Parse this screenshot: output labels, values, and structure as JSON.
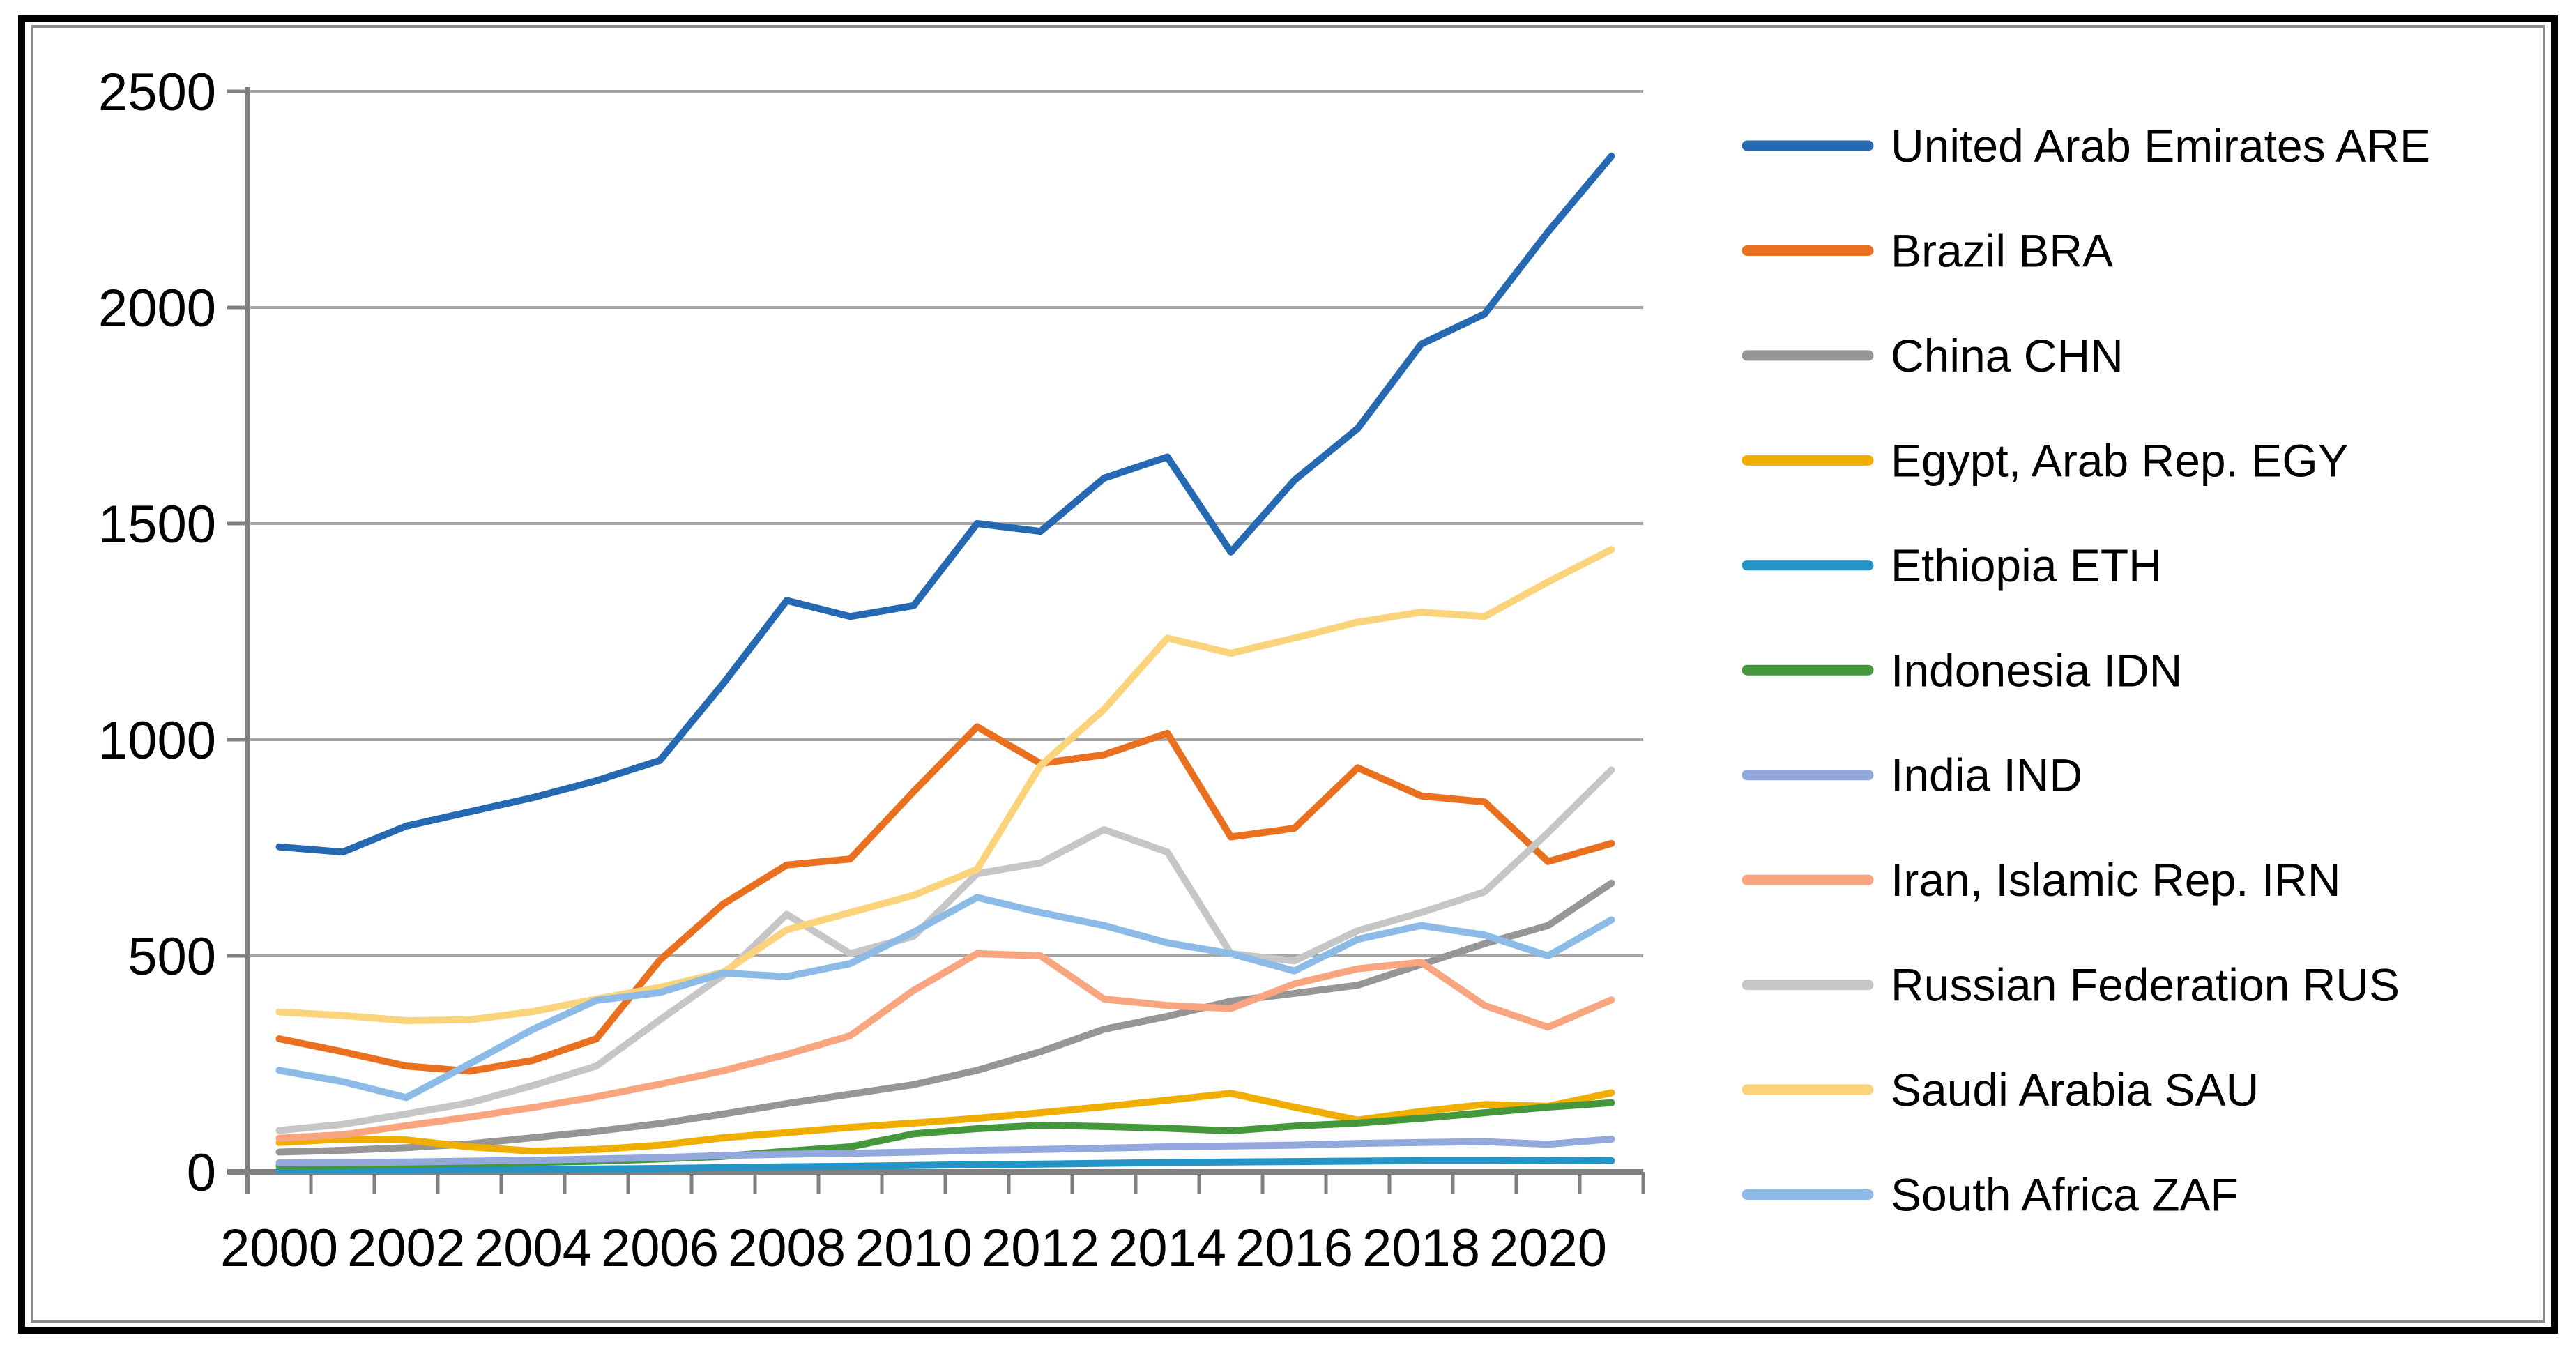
{
  "chart_data": {
    "type": "line",
    "x": [
      2000,
      2001,
      2002,
      2003,
      2004,
      2005,
      2006,
      2007,
      2008,
      2009,
      2010,
      2011,
      2012,
      2013,
      2014,
      2015,
      2016,
      2017,
      2018,
      2019,
      2020,
      2021
    ],
    "xtick_labels": [
      "2000",
      "2002",
      "2004",
      "2006",
      "2008",
      "2010",
      "2012",
      "2014",
      "2016",
      "2018",
      "2020"
    ],
    "ytick_labels": [
      "2500",
      "2000",
      "1500",
      "1000",
      "500",
      "0"
    ],
    "yticks": [
      2500,
      2000,
      1500,
      1000,
      500,
      0
    ],
    "ylim": [
      0,
      2500
    ],
    "grid": "horizontal",
    "legend_position": "right",
    "axis_color": "#808080",
    "grid_color": "#a6a6a6",
    "series": [
      {
        "label": "United Arab Emirates ARE",
        "color": "#2569b3",
        "values": [
          752,
          740,
          800,
          833,
          866,
          905,
          952,
          1130,
          1322,
          1285,
          1310,
          1500,
          1482,
          1605,
          1654,
          1434,
          1600,
          1720,
          1915,
          1985,
          2175,
          2350
        ]
      },
      {
        "label": "Brazil BRA",
        "color": "#e8701f",
        "values": [
          308,
          278,
          245,
          233,
          258,
          308,
          490,
          620,
          710,
          724,
          880,
          1030,
          945,
          965,
          1015,
          775,
          795,
          935,
          870,
          856,
          718,
          760
        ]
      },
      {
        "label": "China CHN",
        "color": "#969696",
        "values": [
          46,
          50,
          56,
          65,
          79,
          94,
          112,
          134,
          158,
          180,
          202,
          235,
          278,
          330,
          360,
          395,
          413,
          432,
          480,
          528,
          570,
          668
        ]
      },
      {
        "label": "Egypt, Arab Rep. EGY",
        "color": "#efae00",
        "values": [
          68,
          76,
          74,
          58,
          48,
          52,
          62,
          79,
          91,
          103,
          113,
          124,
          137,
          151,
          166,
          182,
          150,
          120,
          140,
          156,
          152,
          183
        ]
      },
      {
        "label": "Ethiopia ETH",
        "color": "#2394c5",
        "values": [
          5,
          5,
          5,
          6,
          6,
          7,
          8,
          10,
          12,
          13,
          15,
          17,
          18,
          20,
          22,
          23,
          24,
          25,
          26,
          26,
          27,
          26
        ]
      },
      {
        "label": "Indonesia IDN",
        "color": "#44973b",
        "values": [
          14,
          15,
          17,
          20,
          22,
          25,
          30,
          36,
          48,
          58,
          88,
          100,
          108,
          105,
          101,
          95,
          106,
          113,
          124,
          137,
          150,
          160
        ]
      },
      {
        "label": "India IND",
        "color": "#93a8dc",
        "values": [
          21,
          22,
          23,
          25,
          27,
          30,
          33,
          38,
          41,
          43,
          46,
          50,
          52,
          55,
          58,
          60,
          62,
          66,
          68,
          70,
          64,
          76
        ]
      },
      {
        "label": "Iran, Islamic Rep. IRN",
        "color": "#f9a57f",
        "values": [
          78,
          86,
          107,
          127,
          149,
          174,
          203,
          234,
          272,
          315,
          420,
          505,
          500,
          400,
          385,
          378,
          435,
          470,
          485,
          385,
          335,
          398
        ]
      },
      {
        "label": "Russian Federation RUS",
        "color": "#c6c6c6",
        "values": [
          96,
          110,
          134,
          160,
          200,
          245,
          352,
          455,
          596,
          505,
          545,
          690,
          715,
          792,
          740,
          505,
          488,
          558,
          600,
          648,
          785,
          930
        ]
      },
      {
        "label": "Saudi Arabia SAU",
        "color": "#fbd37a",
        "values": [
          370,
          362,
          350,
          352,
          371,
          400,
          427,
          462,
          560,
          600,
          640,
          700,
          940,
          1070,
          1235,
          1200,
          1235,
          1272,
          1295,
          1285,
          1365,
          1440
        ]
      },
      {
        "label": "South Africa ZAF",
        "color": "#8cbbe8",
        "values": [
          235,
          209,
          172,
          250,
          330,
          397,
          415,
          460,
          452,
          482,
          555,
          635,
          600,
          570,
          530,
          505,
          465,
          538,
          570,
          548,
          500,
          583
        ]
      }
    ]
  }
}
